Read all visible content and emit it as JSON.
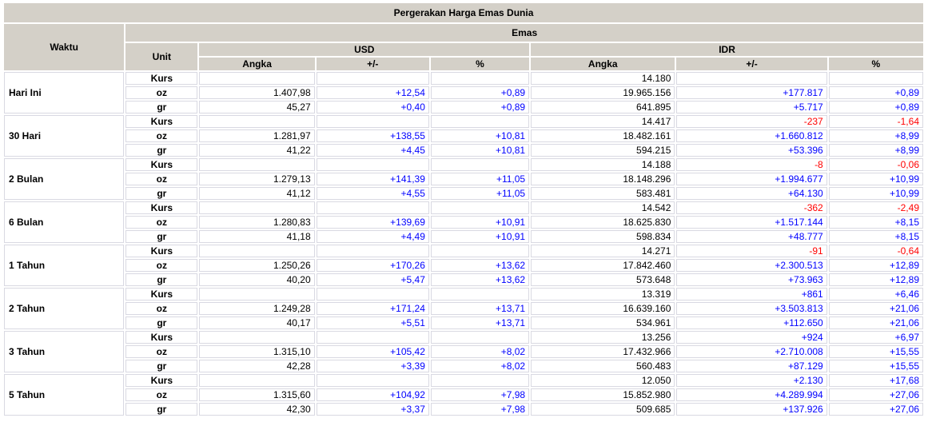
{
  "title": "Pergerakan Harga Emas Dunia",
  "header": {
    "waktu": "Waktu",
    "emas": "Emas",
    "unit": "Unit",
    "usd": "USD",
    "idr": "IDR",
    "angka": "Angka",
    "plus_minus": "+/-",
    "percent": "%"
  },
  "colors": {
    "positive": "#0000ff",
    "negative": "#ff0000",
    "header_bg": "#d4d0c8",
    "cell_border": "#d9d9e2"
  },
  "sections": [
    {
      "waktu": "Hari Ini",
      "rows": [
        {
          "unit": "Kurs",
          "usd": {
            "angka": "",
            "change": "",
            "pct": ""
          },
          "idr": {
            "angka": "14.180",
            "change": "",
            "pct": ""
          }
        },
        {
          "unit": "oz",
          "usd": {
            "angka": "1.407,98",
            "change": "+12,54",
            "pct": "+0,89"
          },
          "idr": {
            "angka": "19.965.156",
            "change": "+177.817",
            "pct": "+0,89"
          }
        },
        {
          "unit": "gr",
          "usd": {
            "angka": "45,27",
            "change": "+0,40",
            "pct": "+0,89"
          },
          "idr": {
            "angka": "641.895",
            "change": "+5.717",
            "pct": "+0,89"
          }
        }
      ]
    },
    {
      "waktu": "30 Hari",
      "rows": [
        {
          "unit": "Kurs",
          "usd": {
            "angka": "",
            "change": "",
            "pct": ""
          },
          "idr": {
            "angka": "14.417",
            "change": "-237",
            "pct": "-1,64"
          }
        },
        {
          "unit": "oz",
          "usd": {
            "angka": "1.281,97",
            "change": "+138,55",
            "pct": "+10,81"
          },
          "idr": {
            "angka": "18.482.161",
            "change": "+1.660.812",
            "pct": "+8,99"
          }
        },
        {
          "unit": "gr",
          "usd": {
            "angka": "41,22",
            "change": "+4,45",
            "pct": "+10,81"
          },
          "idr": {
            "angka": "594.215",
            "change": "+53.396",
            "pct": "+8,99"
          }
        }
      ]
    },
    {
      "waktu": "2 Bulan",
      "rows": [
        {
          "unit": "Kurs",
          "usd": {
            "angka": "",
            "change": "",
            "pct": ""
          },
          "idr": {
            "angka": "14.188",
            "change": "-8",
            "pct": "-0,06"
          }
        },
        {
          "unit": "oz",
          "usd": {
            "angka": "1.279,13",
            "change": "+141,39",
            "pct": "+11,05"
          },
          "idr": {
            "angka": "18.148.296",
            "change": "+1.994.677",
            "pct": "+10,99"
          }
        },
        {
          "unit": "gr",
          "usd": {
            "angka": "41,12",
            "change": "+4,55",
            "pct": "+11,05"
          },
          "idr": {
            "angka": "583.481",
            "change": "+64.130",
            "pct": "+10,99"
          }
        }
      ]
    },
    {
      "waktu": "6 Bulan",
      "rows": [
        {
          "unit": "Kurs",
          "usd": {
            "angka": "",
            "change": "",
            "pct": ""
          },
          "idr": {
            "angka": "14.542",
            "change": "-362",
            "pct": "-2,49"
          }
        },
        {
          "unit": "oz",
          "usd": {
            "angka": "1.280,83",
            "change": "+139,69",
            "pct": "+10,91"
          },
          "idr": {
            "angka": "18.625.830",
            "change": "+1.517.144",
            "pct": "+8,15"
          }
        },
        {
          "unit": "gr",
          "usd": {
            "angka": "41,18",
            "change": "+4,49",
            "pct": "+10,91"
          },
          "idr": {
            "angka": "598.834",
            "change": "+48.777",
            "pct": "+8,15"
          }
        }
      ]
    },
    {
      "waktu": "1 Tahun",
      "rows": [
        {
          "unit": "Kurs",
          "usd": {
            "angka": "",
            "change": "",
            "pct": ""
          },
          "idr": {
            "angka": "14.271",
            "change": "-91",
            "pct": "-0,64"
          }
        },
        {
          "unit": "oz",
          "usd": {
            "angka": "1.250,26",
            "change": "+170,26",
            "pct": "+13,62"
          },
          "idr": {
            "angka": "17.842.460",
            "change": "+2.300.513",
            "pct": "+12,89"
          }
        },
        {
          "unit": "gr",
          "usd": {
            "angka": "40,20",
            "change": "+5,47",
            "pct": "+13,62"
          },
          "idr": {
            "angka": "573.648",
            "change": "+73.963",
            "pct": "+12,89"
          }
        }
      ]
    },
    {
      "waktu": "2 Tahun",
      "rows": [
        {
          "unit": "Kurs",
          "usd": {
            "angka": "",
            "change": "",
            "pct": ""
          },
          "idr": {
            "angka": "13.319",
            "change": "+861",
            "pct": "+6,46"
          }
        },
        {
          "unit": "oz",
          "usd": {
            "angka": "1.249,28",
            "change": "+171,24",
            "pct": "+13,71"
          },
          "idr": {
            "angka": "16.639.160",
            "change": "+3.503.813",
            "pct": "+21,06"
          }
        },
        {
          "unit": "gr",
          "usd": {
            "angka": "40,17",
            "change": "+5,51",
            "pct": "+13,71"
          },
          "idr": {
            "angka": "534.961",
            "change": "+112.650",
            "pct": "+21,06"
          }
        }
      ]
    },
    {
      "waktu": "3 Tahun",
      "rows": [
        {
          "unit": "Kurs",
          "usd": {
            "angka": "",
            "change": "",
            "pct": ""
          },
          "idr": {
            "angka": "13.256",
            "change": "+924",
            "pct": "+6,97"
          }
        },
        {
          "unit": "oz",
          "usd": {
            "angka": "1.315,10",
            "change": "+105,42",
            "pct": "+8,02"
          },
          "idr": {
            "angka": "17.432.966",
            "change": "+2.710.008",
            "pct": "+15,55"
          }
        },
        {
          "unit": "gr",
          "usd": {
            "angka": "42,28",
            "change": "+3,39",
            "pct": "+8,02"
          },
          "idr": {
            "angka": "560.483",
            "change": "+87.129",
            "pct": "+15,55"
          }
        }
      ]
    },
    {
      "waktu": "5 Tahun",
      "rows": [
        {
          "unit": "Kurs",
          "usd": {
            "angka": "",
            "change": "",
            "pct": ""
          },
          "idr": {
            "angka": "12.050",
            "change": "+2.130",
            "pct": "+17,68"
          }
        },
        {
          "unit": "oz",
          "usd": {
            "angka": "1.315,60",
            "change": "+104,92",
            "pct": "+7,98"
          },
          "idr": {
            "angka": "15.852.980",
            "change": "+4.289.994",
            "pct": "+27,06"
          }
        },
        {
          "unit": "gr",
          "usd": {
            "angka": "42,30",
            "change": "+3,37",
            "pct": "+7,98"
          },
          "idr": {
            "angka": "509.685",
            "change": "+137.926",
            "pct": "+27,06"
          }
        }
      ]
    }
  ]
}
